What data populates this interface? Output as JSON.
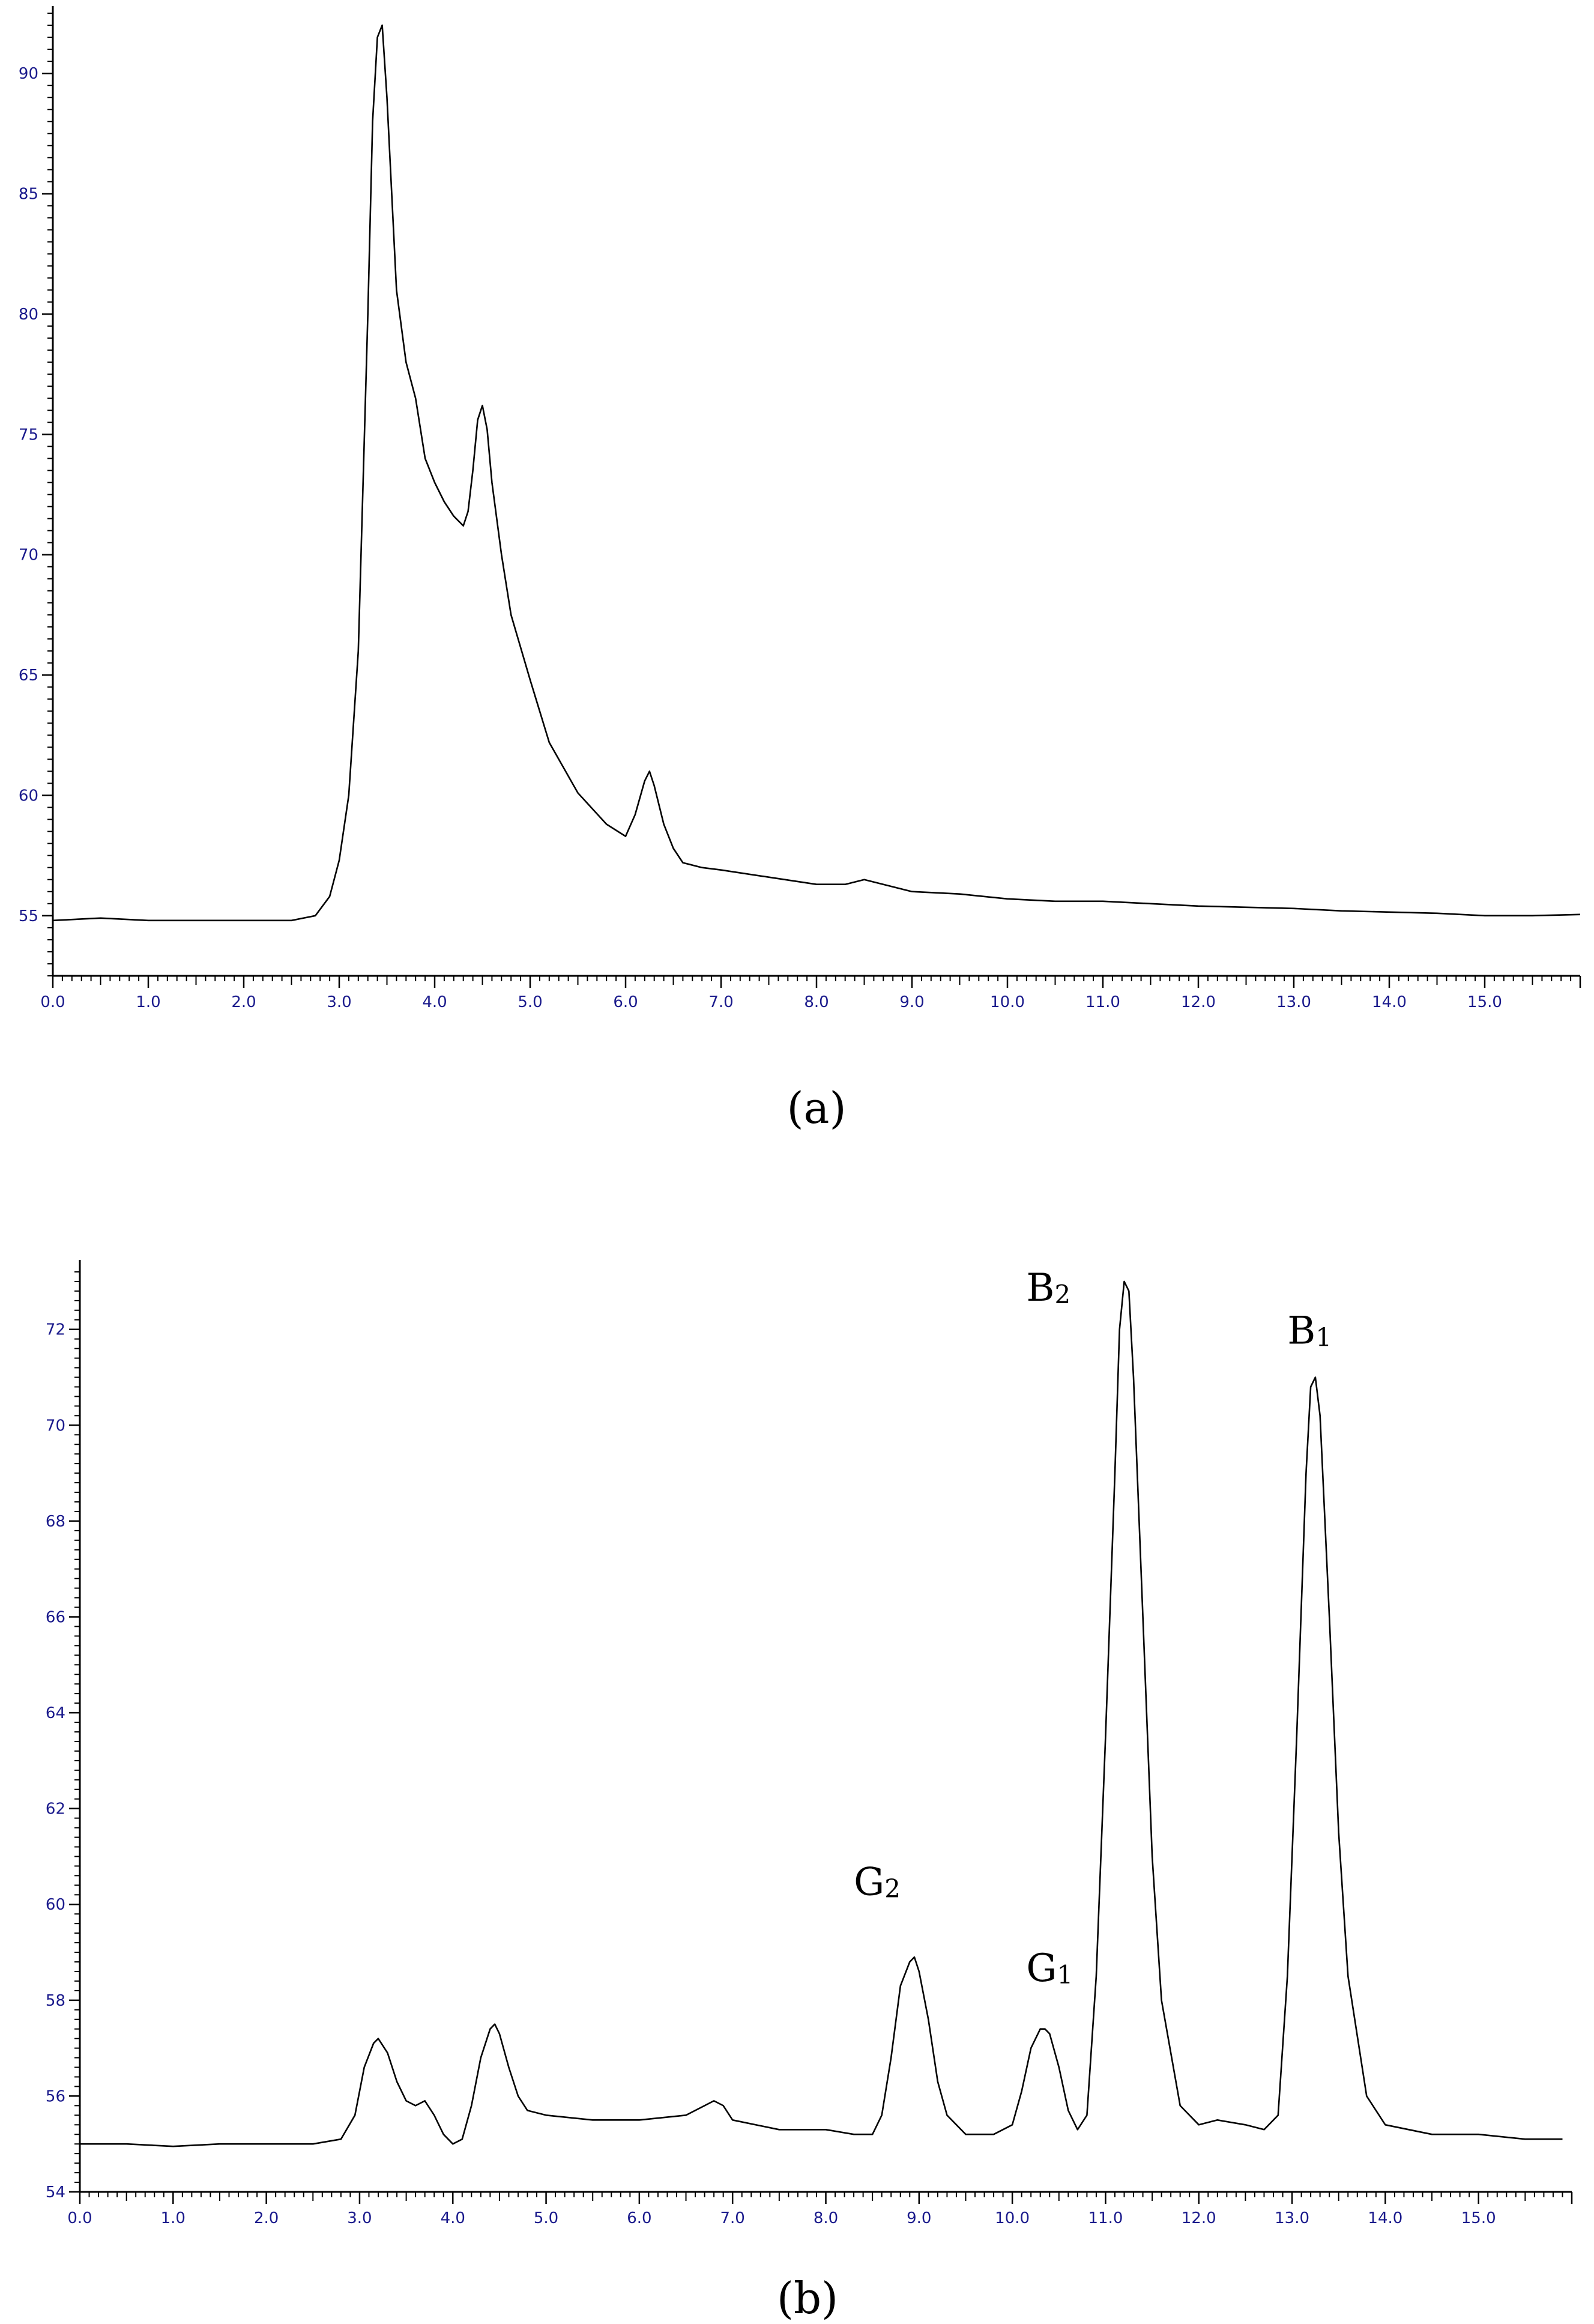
{
  "chart_data": [
    {
      "type": "line",
      "panel_label": "(a)",
      "xlim": [
        0,
        16
      ],
      "ylim": [
        52.5,
        92.5
      ],
      "x_ticks": [
        0,
        1,
        2,
        3,
        4,
        5,
        6,
        7,
        8,
        9,
        10,
        11,
        12,
        13,
        14,
        15
      ],
      "x_tick_labels": [
        "0.0",
        "1.0",
        "2.0",
        "3.0",
        "4.0",
        "5.0",
        "6.0",
        "7.0",
        "8.0",
        "9.0",
        "10.0",
        "11.0",
        "12.0",
        "13.0",
        "14.0",
        "15.0"
      ],
      "y_ticks": [
        55,
        60,
        65,
        70,
        75,
        80,
        85,
        90
      ],
      "y_tick_labels": [
        "55",
        "60",
        "65",
        "70",
        "75",
        "80",
        "85",
        "90"
      ],
      "grid": false,
      "series": [
        {
          "x": [
            0,
            0.5,
            1.0,
            1.5,
            2.0,
            2.5,
            2.75,
            2.9,
            3.0,
            3.1,
            3.2,
            3.3,
            3.35,
            3.4,
            3.45,
            3.5,
            3.6,
            3.7,
            3.8,
            3.9,
            4.0,
            4.1,
            4.2,
            4.3,
            4.35,
            4.4,
            4.45,
            4.5,
            4.55,
            4.6,
            4.7,
            4.8,
            5.0,
            5.2,
            5.5,
            5.8,
            6.0,
            6.1,
            6.2,
            6.25,
            6.3,
            6.4,
            6.5,
            6.6,
            6.8,
            7.0,
            7.5,
            8.0,
            8.3,
            8.5,
            8.7,
            9.0,
            9.5,
            10.0,
            10.5,
            11.0,
            11.5,
            12.0,
            12.5,
            13.0,
            13.5,
            14.0,
            14.5,
            15.0,
            15.5,
            16.0
          ],
          "y": [
            54.8,
            54.9,
            54.8,
            54.8,
            54.8,
            54.8,
            55.0,
            55.8,
            57.3,
            60.0,
            66.0,
            80.0,
            88.0,
            91.5,
            92.0,
            89.0,
            81.0,
            78.0,
            76.5,
            74.0,
            73.0,
            72.2,
            71.6,
            71.2,
            71.8,
            73.5,
            75.6,
            76.2,
            75.2,
            73.0,
            70.0,
            67.5,
            64.8,
            62.2,
            60.1,
            58.8,
            58.3,
            59.2,
            60.6,
            61.0,
            60.4,
            58.8,
            57.8,
            57.2,
            57.0,
            56.9,
            56.6,
            56.3,
            56.3,
            56.5,
            56.3,
            56.0,
            55.9,
            55.7,
            55.6,
            55.6,
            55.5,
            55.4,
            55.35,
            55.3,
            55.2,
            55.15,
            55.1,
            55.0,
            55.0,
            55.05
          ]
        }
      ]
    },
    {
      "type": "line",
      "panel_label": "(b)",
      "xlim": [
        0,
        16
      ],
      "ylim": [
        54,
        73.3
      ],
      "x_ticks": [
        0,
        1,
        2,
        3,
        4,
        5,
        6,
        7,
        8,
        9,
        10,
        11,
        12,
        13,
        14,
        15
      ],
      "x_tick_labels": [
        "0.0",
        "1.0",
        "2.0",
        "3.0",
        "4.0",
        "5.0",
        "6.0",
        "7.0",
        "8.0",
        "9.0",
        "10.0",
        "11.0",
        "12.0",
        "13.0",
        "14.0",
        "15.0"
      ],
      "y_ticks": [
        54,
        56,
        58,
        60,
        62,
        64,
        66,
        68,
        70,
        72
      ],
      "y_tick_labels": [
        "54",
        "56",
        "58",
        "60",
        "62",
        "64",
        "66",
        "68",
        "70",
        "72"
      ],
      "grid": false,
      "series": [
        {
          "x": [
            0,
            0.5,
            1.0,
            1.5,
            2.0,
            2.5,
            2.8,
            2.95,
            3.05,
            3.15,
            3.2,
            3.3,
            3.4,
            3.5,
            3.6,
            3.7,
            3.8,
            3.9,
            4.0,
            4.1,
            4.2,
            4.3,
            4.4,
            4.45,
            4.5,
            4.6,
            4.7,
            4.8,
            5.0,
            5.5,
            6.0,
            6.5,
            6.7,
            6.8,
            6.9,
            7.0,
            7.5,
            8.0,
            8.3,
            8.5,
            8.6,
            8.7,
            8.8,
            8.9,
            8.95,
            9.0,
            9.1,
            9.2,
            9.3,
            9.5,
            9.8,
            10.0,
            10.1,
            10.2,
            10.3,
            10.35,
            10.4,
            10.5,
            10.6,
            10.7,
            10.8,
            10.9,
            11.0,
            11.1,
            11.15,
            11.2,
            11.25,
            11.3,
            11.4,
            11.5,
            11.6,
            11.8,
            12.0,
            12.2,
            12.5,
            12.7,
            12.85,
            12.95,
            13.05,
            13.15,
            13.2,
            13.25,
            13.3,
            13.4,
            13.5,
            13.6,
            13.8,
            14.0,
            14.5,
            15.0,
            15.5,
            15.9
          ],
          "y": [
            55.0,
            55.0,
            54.95,
            55.0,
            55.0,
            55.0,
            55.1,
            55.6,
            56.6,
            57.1,
            57.2,
            56.9,
            56.3,
            55.9,
            55.8,
            55.9,
            55.6,
            55.2,
            55.0,
            55.1,
            55.8,
            56.8,
            57.4,
            57.5,
            57.3,
            56.6,
            56.0,
            55.7,
            55.6,
            55.5,
            55.5,
            55.6,
            55.8,
            55.9,
            55.8,
            55.5,
            55.3,
            55.3,
            55.2,
            55.2,
            55.6,
            56.8,
            58.3,
            58.8,
            58.9,
            58.6,
            57.6,
            56.3,
            55.6,
            55.2,
            55.2,
            55.4,
            56.1,
            57.0,
            57.4,
            57.4,
            57.3,
            56.6,
            55.7,
            55.3,
            55.6,
            58.5,
            63.5,
            69.0,
            72.0,
            73.0,
            72.8,
            71.0,
            66.0,
            61.0,
            58.0,
            55.8,
            55.4,
            55.5,
            55.4,
            55.3,
            55.6,
            58.5,
            63.5,
            69.0,
            70.8,
            71.0,
            70.2,
            66.0,
            61.5,
            58.5,
            56.0,
            55.4,
            55.2,
            55.2,
            55.1,
            55.1
          ]
        }
      ],
      "annotations": [
        {
          "text": "G",
          "sub": "2",
          "x": 8.3,
          "y": 60.2
        },
        {
          "text": "G",
          "sub": "1",
          "x": 10.15,
          "y": 58.4
        },
        {
          "text": "B",
          "sub": "2",
          "x": 10.15,
          "y": 72.6
        },
        {
          "text": "B",
          "sub": "1",
          "x": 12.95,
          "y": 71.7
        }
      ]
    }
  ]
}
